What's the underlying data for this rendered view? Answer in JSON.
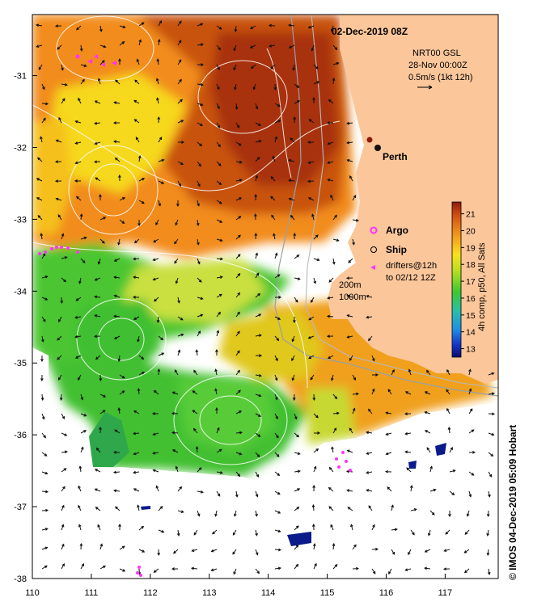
{
  "map": {
    "title": "02-Dec-2019 08Z",
    "product_line1": "NRT00 GSL",
    "product_line2": "28-Nov 00:00Z",
    "product_line3": "0.5m/s (1kt 12h)",
    "city": "Perth",
    "legend": {
      "argo": "Argo",
      "ship": "Ship",
      "drifters_line1": "drifters@12h",
      "drifters_line2": "to 02/12 12Z"
    },
    "contours": {
      "c200": "200m",
      "c1000": "1000m"
    },
    "colorbar": {
      "label": "4h comp, p50, All Sats",
      "ticks": [
        "21",
        "20",
        "19",
        "18",
        "17",
        "16",
        "15",
        "14",
        "13"
      ],
      "tick_values": [
        21,
        20,
        19,
        18,
        17,
        16,
        15,
        14,
        13
      ],
      "range": [
        12.5,
        21.7
      ]
    },
    "x_ticks": [
      "110",
      "111",
      "112",
      "113",
      "114",
      "115",
      "116",
      "117"
    ],
    "x_tick_values": [
      110,
      111,
      112,
      113,
      114,
      115,
      116,
      117
    ],
    "y_ticks": [
      "-31",
      "-32",
      "-33",
      "-34",
      "-35",
      "-36",
      "-37",
      "-38"
    ],
    "y_tick_values": [
      -31,
      -32,
      -33,
      -34,
      -35,
      -36,
      -37,
      -38
    ],
    "lon_range": [
      110,
      117.9
    ],
    "lat_range": [
      -38,
      -30.15
    ],
    "credit": "© IMOS 04-Dec-2019 05:09 Hobart",
    "colors": {
      "land": "#fbc69a",
      "warm": "#b63a0c",
      "orange": "#f28c1c",
      "yellow": "#f6d81e",
      "green": "#4cc632",
      "deep_green": "#2ea84a",
      "ocean_white": "#ffffff",
      "argo_marker": "#ff33ff",
      "cloud_blue": "#0a1a8a"
    }
  }
}
